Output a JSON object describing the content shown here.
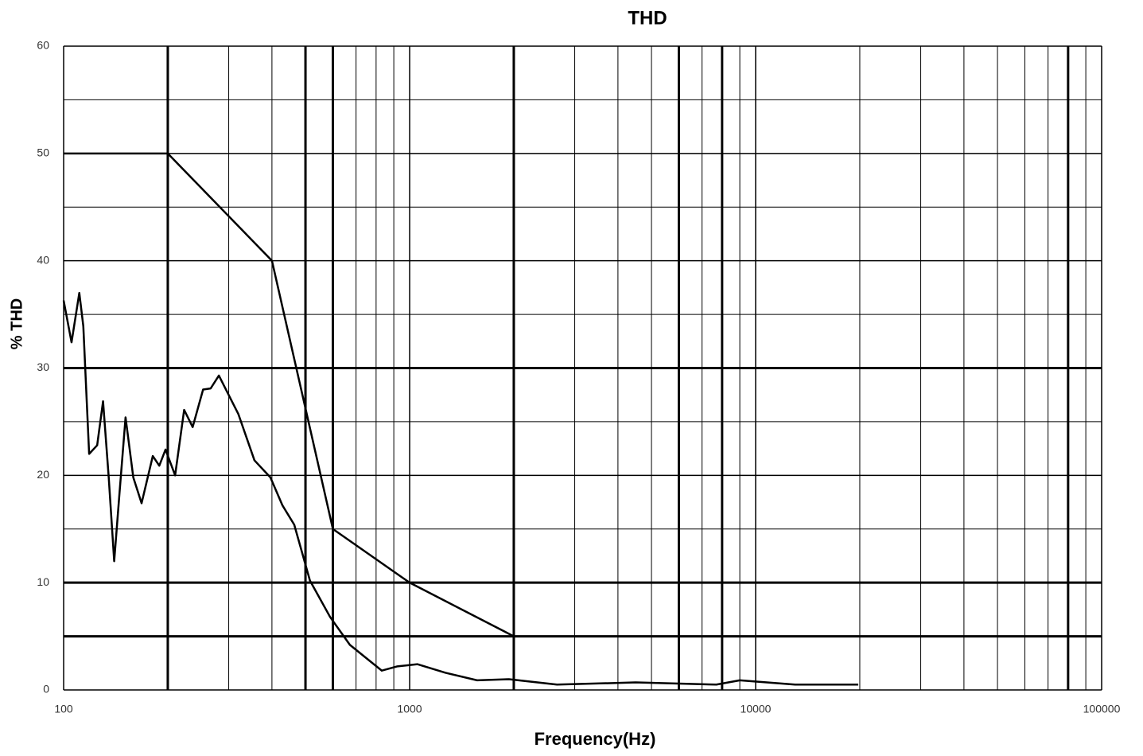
{
  "chart_data": {
    "type": "line",
    "title": "THD",
    "xlabel": "Frequency(Hz)",
    "ylabel": "% THD",
    "xscale": "log",
    "xlim": [
      100,
      100000
    ],
    "ylim": [
      0,
      60
    ],
    "xticks": [
      100,
      1000,
      10000,
      100000
    ],
    "yticks": [
      0,
      10,
      20,
      30,
      40,
      50,
      60
    ],
    "grid": true,
    "xminor": [
      200,
      300,
      400,
      500,
      600,
      700,
      800,
      900,
      2000,
      3000,
      4000,
      5000,
      6000,
      7000,
      8000,
      9000,
      20000,
      30000,
      40000,
      50000,
      60000,
      70000,
      80000,
      90000
    ],
    "yminor": [
      5,
      15,
      25,
      35,
      45,
      55
    ],
    "bold_grid_x": [
      200,
      500,
      600,
      2000,
      6000,
      8000,
      80000
    ],
    "bold_grid_y": [
      5,
      10,
      30
    ],
    "series": [
      {
        "color": "#000000",
        "x": [
          100,
          200,
          400,
          600,
          1000,
          2000
        ],
        "values": [
          50,
          50,
          40,
          15,
          10,
          5
        ]
      },
      {
        "color": "#000000",
        "x": [
          100,
          105.4,
          111,
          114,
          118.5,
          125,
          130,
          135,
          140,
          145,
          151,
          159,
          168,
          181,
          189,
          197,
          210,
          223,
          236,
          253,
          266,
          281,
          320,
          356,
          396,
          429,
          464,
          515,
          589,
          672,
          831,
          922,
          1054,
          1270,
          1567,
          1936,
          2666,
          4500,
          7700,
          9000,
          13000,
          19800
        ],
        "values": [
          36.3,
          32.4,
          37,
          33.9,
          22,
          22.8,
          26.9,
          19.8,
          12,
          18.3,
          25.4,
          19.8,
          17.4,
          21.8,
          20.9,
          22.4,
          20,
          26.1,
          24.5,
          28,
          28.1,
          29.3,
          25.7,
          21.4,
          19.8,
          17.2,
          15.4,
          10.2,
          6.8,
          4.2,
          1.8,
          2.2,
          2.4,
          1.6,
          0.9,
          1,
          0.5,
          0.7,
          0.5,
          0.9,
          0.5,
          0.5
        ]
      }
    ]
  }
}
